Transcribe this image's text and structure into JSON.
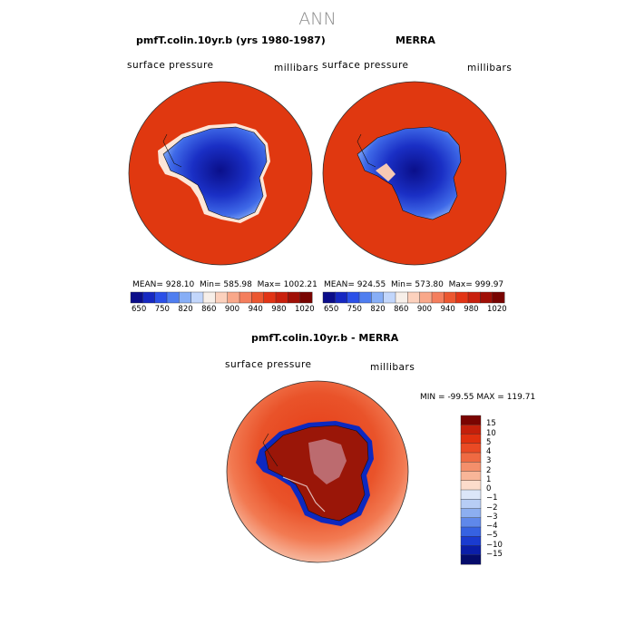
{
  "title": "ANN",
  "top_left": {
    "title": "pmfT.colin.10yr.b (yrs 1980-1987)",
    "field": "surface pressure",
    "units": "millibars",
    "stats": {
      "mean_label": "MEAN=",
      "mean": "928.10",
      "min_label": "Min=",
      "min": "585.98",
      "max_label": "Max=",
      "max": "1002.21"
    }
  },
  "top_right": {
    "title": "MERRA",
    "field": "surface pressure",
    "units": "millibars",
    "stats": {
      "mean_label": "MEAN=",
      "mean": "924.55",
      "min_label": "Min=",
      "min": "573.80",
      "max_label": "Max=",
      "max": "999.97"
    }
  },
  "top_colorbar": {
    "ticks": [
      "650",
      "750",
      "820",
      "860",
      "900",
      "940",
      "980",
      "1020"
    ],
    "colors": [
      "#0b0d8a",
      "#1628c2",
      "#2b50e8",
      "#4f7ef0",
      "#87aef6",
      "#c2d6fb",
      "#f7efe9",
      "#fcd1bd",
      "#f9a88a",
      "#f47e5d",
      "#ec5730",
      "#e23415",
      "#c9200d",
      "#a00f06",
      "#780401"
    ]
  },
  "bottom": {
    "title": "pmfT.colin.10yr.b - MERRA",
    "field": "surface pressure",
    "units": "millibars",
    "range": {
      "min_label": "MIN =",
      "min": "-99.55",
      "max_label": "MAX =",
      "max": "119.71"
    }
  },
  "diff_colorbar": {
    "ticks": [
      "15",
      "10",
      "5",
      "4",
      "3",
      "2",
      "1",
      "0",
      "−1",
      "−2",
      "−3",
      "−4",
      "−5",
      "−10",
      "−15"
    ],
    "colors": [
      "#7a0401",
      "#c4200b",
      "#e0310f",
      "#ea4a24",
      "#ef6a42",
      "#f48f6b",
      "#f8b598",
      "#fcdccb",
      "#dbe6f8",
      "#b7cdf5",
      "#8caef0",
      "#5f88ea",
      "#3662e2",
      "#1a3bd0",
      "#0b1ea8",
      "#050c6b"
    ]
  },
  "colors": {
    "ocean_high": "#e03810",
    "land_low": "#0a0f8a",
    "diff_pos_strong": "#c8200b",
    "diff_outer": "#f28f6a",
    "diff_neg": "#1030c8"
  }
}
